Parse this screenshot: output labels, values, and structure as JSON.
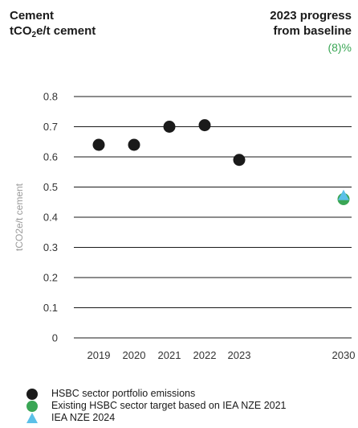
{
  "header": {
    "title_line1": "Cement",
    "unit_prefix": "tCO",
    "unit_subscript": "2",
    "unit_suffix": "e/t cement",
    "progress_label_line1": "2023 progress",
    "progress_label_line2": "from baseline",
    "progress_value": "(8)%",
    "progress_color": "#3aa655"
  },
  "chart_data": {
    "type": "scatter",
    "ylabel": "tCO2e/t cement",
    "ylim": [
      0,
      0.8
    ],
    "yticks": [
      0,
      0.1,
      0.2,
      0.3,
      0.4,
      0.5,
      0.6,
      0.7,
      0.8
    ],
    "x_categories": [
      "2019",
      "2020",
      "2021",
      "2022",
      "2023",
      "2030"
    ],
    "grid": true,
    "legend_placement": "bottom",
    "series": [
      {
        "name": "HSBC sector portfolio emissions",
        "marker": "circle",
        "color": "#1a1a1a",
        "points": [
          {
            "x": "2019",
            "y": 0.64
          },
          {
            "x": "2020",
            "y": 0.64
          },
          {
            "x": "2021",
            "y": 0.7
          },
          {
            "x": "2022",
            "y": 0.705
          },
          {
            "x": "2023",
            "y": 0.59
          }
        ]
      },
      {
        "name": "Existing HSBC sector target based on IEA NZE 2021",
        "marker": "circle",
        "color": "#3aa655",
        "points": [
          {
            "x": "2030",
            "y": 0.46
          }
        ]
      },
      {
        "name": "IEA NZE 2024",
        "marker": "triangle",
        "color": "#5bc0e8",
        "points": [
          {
            "x": "2030",
            "y": 0.47
          }
        ]
      }
    ]
  }
}
